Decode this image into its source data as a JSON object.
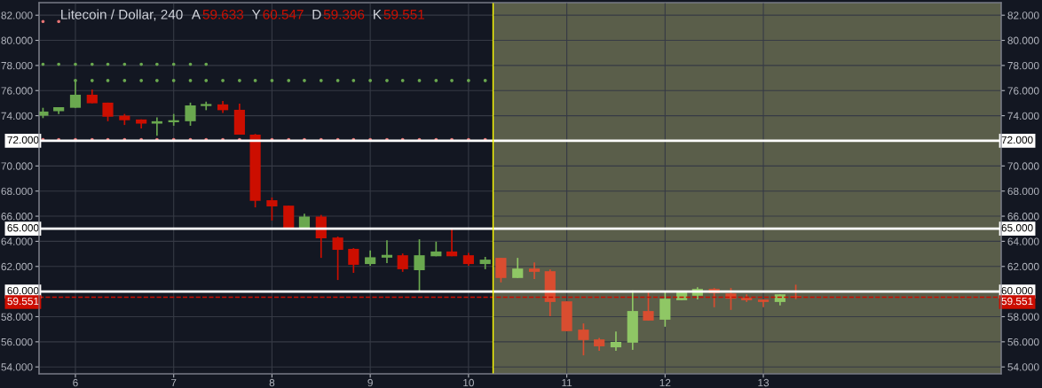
{
  "chart_data": {
    "type": "candlestick",
    "title": "Litecoin / Dollar, 240",
    "annotations": [
      "A",
      "59.633",
      "Y",
      "60.547",
      "D",
      "59.396",
      "K",
      "59.551"
    ],
    "x": [
      5.67,
      5.83,
      6,
      6.17,
      6.33,
      6.5,
      6.67,
      6.83,
      7,
      7.17,
      7.33,
      7.5,
      7.67,
      7.83,
      8,
      8.17,
      8.33,
      8.5,
      8.67,
      8.83,
      9,
      9.17,
      9.33,
      9.5,
      9.67,
      9.83,
      10,
      10.17,
      10.33,
      10.5,
      10.67,
      10.83,
      11,
      11.17,
      11.33,
      11.5,
      11.67,
      11.83,
      12,
      12.17,
      12.33,
      12.5,
      12.67,
      12.83,
      13,
      13.17,
      13.33
    ],
    "ohlc": [
      [
        74.0,
        74.63,
        73.81,
        74.33
      ],
      [
        74.36,
        74.68,
        74.14,
        74.68
      ],
      [
        74.63,
        76.82,
        74.63,
        75.67
      ],
      [
        75.67,
        76.08,
        74.99,
        74.99
      ],
      [
        75.04,
        75.04,
        73.56,
        73.92
      ],
      [
        74.0,
        74.14,
        73.26,
        73.64
      ],
      [
        73.7,
        73.7,
        72.99,
        73.37
      ],
      [
        73.37,
        73.86,
        72.41,
        73.56
      ],
      [
        73.48,
        74.14,
        73.2,
        73.64
      ],
      [
        73.56,
        75.04,
        73.2,
        74.82
      ],
      [
        74.77,
        75.12,
        74.44,
        74.93
      ],
      [
        74.9,
        75.18,
        74.22,
        74.44
      ],
      [
        74.47,
        74.96,
        72.49,
        72.49
      ],
      [
        72.49,
        72.55,
        66.7,
        67.22
      ],
      [
        67.27,
        67.49,
        65.65,
        66.78
      ],
      [
        66.84,
        66.84,
        65.08,
        65.08
      ],
      [
        65.08,
        66.2,
        65.08,
        65.97
      ],
      [
        65.97,
        66.1,
        62.68,
        64.24
      ],
      [
        64.3,
        64.38,
        60.92,
        63.32
      ],
      [
        63.4,
        63.46,
        61.49,
        62.13
      ],
      [
        62.19,
        63.27,
        62.05,
        62.73
      ],
      [
        62.7,
        64.08,
        62.27,
        62.92
      ],
      [
        62.89,
        63.03,
        61.57,
        61.78
      ],
      [
        61.7,
        64.16,
        60.08,
        62.89
      ],
      [
        62.81,
        63.97,
        62.81,
        63.19
      ],
      [
        63.19,
        65.08,
        62.81,
        62.81
      ],
      [
        62.89,
        63.08,
        62.05,
        62.19
      ],
      [
        62.19,
        62.76,
        61.78,
        62.54
      ],
      [
        62.68,
        62.68,
        60.73,
        61.08
      ],
      [
        61.08,
        62.68,
        61.08,
        61.83
      ],
      [
        61.83,
        62.32,
        61.0,
        61.57
      ],
      [
        61.62,
        61.76,
        58.04,
        59.17
      ],
      [
        59.22,
        59.22,
        56.85,
        56.85
      ],
      [
        56.97,
        57.46,
        54.92,
        56.14
      ],
      [
        56.19,
        56.31,
        55.29,
        55.64
      ],
      [
        55.56,
        56.82,
        55.29,
        55.99
      ],
      [
        55.93,
        60.09,
        55.36,
        58.45
      ],
      [
        58.45,
        60.0,
        57.69,
        57.69
      ],
      [
        57.76,
        60.0,
        57.2,
        59.43
      ],
      [
        59.31,
        60.0,
        59.31,
        60.0
      ],
      [
        59.67,
        60.35,
        59.38,
        60.21
      ],
      [
        60.21,
        60.28,
        58.75,
        59.88
      ],
      [
        59.85,
        60.28,
        58.54,
        59.43
      ],
      [
        59.5,
        59.78,
        59.17,
        59.31
      ],
      [
        59.36,
        59.36,
        58.75,
        59.17
      ],
      [
        59.17,
        59.78,
        58.89,
        59.78
      ],
      [
        59.633,
        60.547,
        59.396,
        59.551
      ]
    ],
    "colors": [
      "#6aa84f",
      "#6aa84f",
      "#6aa84f",
      "#cc0e00",
      "#cc0e00",
      "#cc0e00",
      "#cc0e00",
      "#6aa84f",
      "#6aa84f",
      "#6aa84f",
      "#6aa84f",
      "#cc0e00",
      "#cc0e00",
      "#cc0e00",
      "#cc0e00",
      "#cc0e00",
      "#6aa84f",
      "#cc0e00",
      "#cc0e00",
      "#cc0e00",
      "#6aa84f",
      "#6aa84f",
      "#cc0e00",
      "#6aa84f",
      "#6aa84f",
      "#cc0e00",
      "#cc0e00",
      "#6aa84f",
      "#d94d30",
      "#8fc765",
      "#d94d30",
      "#d94d30",
      "#d94d30",
      "#d94d30",
      "#d94d30",
      "#8fc765",
      "#8fc765",
      "#d94d30",
      "#8fc765",
      "#8fc765",
      "#8fc765",
      "#d94d30",
      "#d94d30",
      "#d94d30",
      "#d94d30",
      "#8fc765",
      "#d94d30"
    ],
    "series": [
      {
        "type": "scatter",
        "color": "#e57373",
        "x": [
          5.67,
          5.83
        ],
        "values": [
          81.5,
          81.5
        ]
      },
      {
        "type": "scatter",
        "color": "#6aa84f",
        "x": [
          5.67,
          5.83,
          6,
          6.17,
          6.33,
          6.5,
          6.67,
          6.83,
          7,
          7.17,
          7.33
        ],
        "values": [
          78.1,
          78.1,
          78.1,
          78.1,
          78.1,
          78.1,
          78.1,
          78.1,
          78.1,
          78.1,
          78.1
        ]
      },
      {
        "type": "scatter",
        "color": "#6aa84f",
        "x": [
          6,
          6.17,
          6.33,
          6.5,
          6.67,
          6.83,
          7,
          7.17,
          7.33,
          7.5,
          7.67,
          7.83,
          8,
          8.17,
          8.33,
          8.5,
          8.67,
          8.83,
          9,
          9.17,
          9.33,
          9.5,
          9.67,
          9.83,
          10,
          10.17
        ],
        "values": [
          76.8,
          76.8,
          76.8,
          76.8,
          76.8,
          76.8,
          76.8,
          76.8,
          76.8,
          76.8,
          76.8,
          76.8,
          76.8,
          76.8,
          76.8,
          76.8,
          76.8,
          76.8,
          76.8,
          76.8,
          76.8,
          76.8,
          76.8,
          76.8,
          76.8,
          76.8
        ]
      },
      {
        "type": "scatter",
        "color": "#e57373",
        "x": [
          5.67,
          5.83,
          6,
          6.17,
          6.33,
          6.5,
          6.67,
          6.83,
          7,
          7.17,
          7.33,
          7.5,
          7.67,
          8,
          8.17,
          8.33,
          8.5,
          8.67,
          8.83,
          9,
          9.17,
          9.33,
          9.5,
          9.67,
          9.83,
          10,
          10.17
        ],
        "values": [
          72.1,
          72.1,
          72.1,
          72.1,
          72.1,
          72.1,
          72.1,
          72.1,
          72.1,
          72.1,
          72.1,
          72.1,
          72.1,
          72.1,
          72.1,
          72.1,
          72.1,
          72.1,
          72.1,
          72.1,
          72.1,
          72.1,
          72.1,
          72.1,
          72.1,
          72.1,
          72.1
        ]
      }
    ],
    "marker": "circle",
    "ref_lines": [
      {
        "axis": "y",
        "value": 72,
        "label": "72.000",
        "color": "#ffffff"
      },
      {
        "axis": "y",
        "value": 65,
        "label": "65.000",
        "color": "#ffffff"
      },
      {
        "axis": "y",
        "value": 60,
        "label": "60.000",
        "color": "#ffffff"
      },
      {
        "axis": "y",
        "value": 59.551,
        "label": "59.551",
        "color": "#cc0e00",
        "line_style": "dashed"
      },
      {
        "axis": "x",
        "value": 10.25,
        "color": "#ffff00"
      }
    ],
    "bands": [
      {
        "axis": "x",
        "from": 10.25,
        "to": 15.42,
        "color": "#5a5e4a"
      }
    ],
    "xlim": [
      5.63,
      15.42
    ],
    "xticks": [
      6,
      7,
      8,
      9,
      10,
      11,
      12,
      13
    ],
    "ylim": [
      53.45,
      83.0
    ],
    "yticks": [
      {
        "value": 54,
        "label": "54.000"
      },
      {
        "value": 56,
        "label": "56.000"
      },
      {
        "value": 58,
        "label": "58.000"
      },
      {
        "value": 62,
        "label": "62.000"
      },
      {
        "value": 64,
        "label": "64.000"
      },
      {
        "value": 66,
        "label": "66.000"
      },
      {
        "value": 68,
        "label": "68.000"
      },
      {
        "value": 70,
        "label": "70.000"
      },
      {
        "value": 74,
        "label": "74.000"
      },
      {
        "value": 76,
        "label": "76.000"
      },
      {
        "value": 78,
        "label": "78.000"
      },
      {
        "value": 80,
        "label": "80.000"
      },
      {
        "value": 82,
        "label": "82.000"
      }
    ],
    "y2lim": [
      53.45,
      83.0
    ],
    "y2ticks": [
      {
        "value": 54,
        "label": "54.000"
      },
      {
        "value": 56,
        "label": "56.000"
      },
      {
        "value": 58,
        "label": "58.000"
      },
      {
        "value": 62,
        "label": "62.000"
      },
      {
        "value": 64,
        "label": "64.000"
      },
      {
        "value": 66,
        "label": "66.000"
      },
      {
        "value": 68,
        "label": "68.000"
      },
      {
        "value": 70,
        "label": "70.000"
      },
      {
        "value": 74,
        "label": "74.000"
      },
      {
        "value": 76,
        "label": "76.000"
      },
      {
        "value": 78,
        "label": "78.000"
      },
      {
        "value": 80,
        "label": "80.000"
      },
      {
        "value": 82,
        "label": "82.000"
      }
    ],
    "grid": true
  }
}
